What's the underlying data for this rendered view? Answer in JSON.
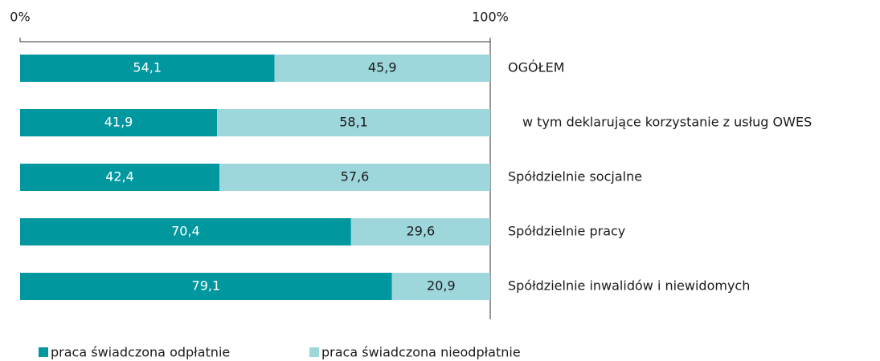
{
  "chart_data": {
    "type": "stacked-barh",
    "categories": [
      "OGÓŁEM",
      "w tym deklarujące korzystanie z usług OWES",
      "Spółdzielnie socjalne",
      "Spółdzielnie pracy",
      "Spółdzielnie inwalidów i niewidomych"
    ],
    "series": [
      {
        "name": "praca świadczona odpłatnie",
        "color": "#00979f",
        "values": [
          54.1,
          41.9,
          42.4,
          70.4,
          79.1
        ],
        "value_labels": [
          "54,1",
          "41,9",
          "42,4",
          "70,4",
          "79,1"
        ]
      },
      {
        "name": "praca świadczona nieodpłatnie",
        "color": "#9dd7dc",
        "values": [
          45.9,
          58.1,
          57.6,
          29.6,
          20.9
        ],
        "value_labels": [
          "45,9",
          "58,1",
          "57,6",
          "29,6",
          "20,9"
        ]
      }
    ],
    "xlim": [
      0,
      100
    ],
    "xticks": [
      {
        "value": 0,
        "label": "0%"
      },
      {
        "value": 100,
        "label": "100%"
      }
    ]
  }
}
